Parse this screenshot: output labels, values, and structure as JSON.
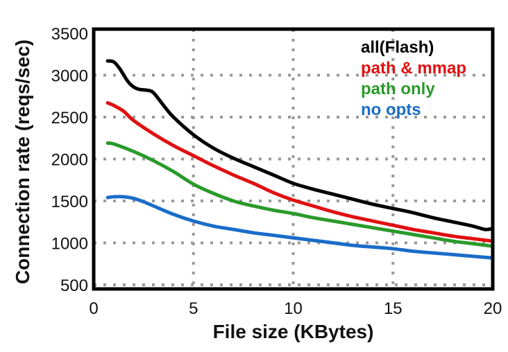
{
  "chart_data": {
    "type": "line",
    "xlabel": "File size (KBytes)",
    "ylabel": "Connection rate (reqs/sec)",
    "xlim": [
      0,
      20
    ],
    "ylim": [
      450,
      3550
    ],
    "xticks": [
      0,
      5,
      10,
      15,
      20
    ],
    "yticks": [
      500,
      1000,
      1500,
      2000,
      2500,
      3000,
      3500
    ],
    "grid": "dotted",
    "legend_position": "top-right",
    "series": [
      {
        "name": "all(Flash)",
        "color": "#000000",
        "points": [
          [
            0.7,
            3170
          ],
          [
            1.0,
            3160
          ],
          [
            1.3,
            3080
          ],
          [
            1.7,
            2930
          ],
          [
            2.0,
            2860
          ],
          [
            2.3,
            2830
          ],
          [
            2.7,
            2820
          ],
          [
            3.0,
            2790
          ],
          [
            3.5,
            2640
          ],
          [
            4.0,
            2500
          ],
          [
            5.0,
            2290
          ],
          [
            6.0,
            2130
          ],
          [
            7.0,
            2010
          ],
          [
            8.0,
            1910
          ],
          [
            9.0,
            1810
          ],
          [
            10.0,
            1710
          ],
          [
            11.0,
            1640
          ],
          [
            12.0,
            1580
          ],
          [
            13.0,
            1520
          ],
          [
            14.0,
            1460
          ],
          [
            15.0,
            1410
          ],
          [
            16.0,
            1360
          ],
          [
            17.0,
            1300
          ],
          [
            18.0,
            1250
          ],
          [
            19.0,
            1200
          ],
          [
            19.6,
            1160
          ],
          [
            20.0,
            1170
          ]
        ]
      },
      {
        "name": "path & mmap",
        "color": "#e01010",
        "points": [
          [
            0.7,
            2670
          ],
          [
            1.0,
            2640
          ],
          [
            1.5,
            2570
          ],
          [
            2.0,
            2460
          ],
          [
            3.0,
            2300
          ],
          [
            4.0,
            2160
          ],
          [
            5.0,
            2040
          ],
          [
            6.0,
            1920
          ],
          [
            7.0,
            1810
          ],
          [
            8.0,
            1710
          ],
          [
            9.0,
            1600
          ],
          [
            10.0,
            1510
          ],
          [
            11.0,
            1440
          ],
          [
            12.0,
            1370
          ],
          [
            13.0,
            1310
          ],
          [
            14.0,
            1260
          ],
          [
            15.0,
            1210
          ],
          [
            16.0,
            1160
          ],
          [
            17.0,
            1120
          ],
          [
            18.0,
            1080
          ],
          [
            19.0,
            1050
          ],
          [
            20.0,
            1020
          ]
        ]
      },
      {
        "name": "path only",
        "color": "#2a9a2a",
        "points": [
          [
            0.7,
            2190
          ],
          [
            1.0,
            2180
          ],
          [
            2.0,
            2090
          ],
          [
            3.0,
            1980
          ],
          [
            4.0,
            1850
          ],
          [
            5.0,
            1700
          ],
          [
            6.0,
            1590
          ],
          [
            7.0,
            1500
          ],
          [
            8.0,
            1440
          ],
          [
            9.0,
            1390
          ],
          [
            10.0,
            1350
          ],
          [
            11.0,
            1300
          ],
          [
            12.0,
            1260
          ],
          [
            13.0,
            1220
          ],
          [
            14.0,
            1180
          ],
          [
            15.0,
            1140
          ],
          [
            16.0,
            1100
          ],
          [
            17.0,
            1060
          ],
          [
            18.0,
            1020
          ],
          [
            19.0,
            990
          ],
          [
            20.0,
            960
          ]
        ]
      },
      {
        "name": "no opts",
        "color": "#1a6cc8",
        "points": [
          [
            0.7,
            1540
          ],
          [
            1.0,
            1550
          ],
          [
            1.5,
            1550
          ],
          [
            2.0,
            1530
          ],
          [
            2.5,
            1490
          ],
          [
            3.0,
            1440
          ],
          [
            4.0,
            1340
          ],
          [
            5.0,
            1260
          ],
          [
            6.0,
            1200
          ],
          [
            7.0,
            1160
          ],
          [
            8.0,
            1120
          ],
          [
            9.0,
            1090
          ],
          [
            10.0,
            1060
          ],
          [
            11.0,
            1030
          ],
          [
            12.0,
            1000
          ],
          [
            13.0,
            970
          ],
          [
            14.0,
            950
          ],
          [
            15.0,
            930
          ],
          [
            16.0,
            900
          ],
          [
            17.0,
            880
          ],
          [
            18.0,
            860
          ],
          [
            19.0,
            840
          ],
          [
            20.0,
            820
          ]
        ]
      }
    ]
  }
}
